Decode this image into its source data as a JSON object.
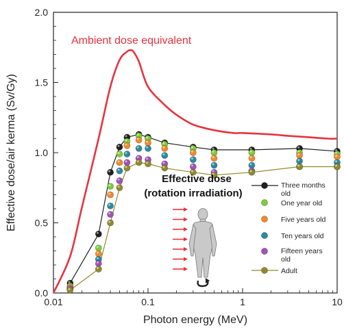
{
  "chart_data": {
    "type": "line",
    "xscale": "log",
    "xlim": [
      0.01,
      10
    ],
    "ylim": [
      0.0,
      2.0
    ],
    "xlabel": "Photon energy (MeV)",
    "ylabel": "Effective dose/air kerma (Sv/Gy)",
    "x_ticks": [
      {
        "v": 0.01,
        "label": "0.01"
      },
      {
        "v": 0.1,
        "label": "0.1"
      },
      {
        "v": 1,
        "label": "1"
      },
      {
        "v": 10,
        "label": "10"
      }
    ],
    "y_ticks": [
      {
        "v": 0.0,
        "label": "0.0"
      },
      {
        "v": 0.5,
        "label": "0.5"
      },
      {
        "v": 1.0,
        "label": "1.0"
      },
      {
        "v": 1.5,
        "label": "1.5"
      },
      {
        "v": 2.0,
        "label": "2.0"
      }
    ],
    "annotations": {
      "ambient": "Ambient dose equivalent",
      "effective_line1": "Effective dose",
      "effective_line2": "(rotation irradiation)"
    },
    "ambient_series": {
      "color": "#e8323c",
      "x": [
        0.01,
        0.015,
        0.02,
        0.03,
        0.04,
        0.05,
        0.06,
        0.065,
        0.07,
        0.08,
        0.1,
        0.15,
        0.2,
        0.3,
        0.5,
        0.8,
        1,
        2,
        3,
        5,
        8,
        10
      ],
      "y": [
        0.0,
        0.26,
        0.61,
        1.1,
        1.47,
        1.66,
        1.72,
        1.73,
        1.72,
        1.65,
        1.47,
        1.34,
        1.27,
        1.2,
        1.16,
        1.14,
        1.14,
        1.13,
        1.12,
        1.11,
        1.1,
        1.1
      ]
    },
    "x": [
      0.015,
      0.03,
      0.04,
      0.05,
      0.06,
      0.08,
      0.1,
      0.15,
      0.3,
      0.5,
      1.25,
      4,
      10
    ],
    "series": [
      {
        "name": "Three months old",
        "color": "#1f1f1f",
        "line": true,
        "values": [
          0.07,
          0.42,
          0.86,
          1.04,
          1.11,
          1.13,
          1.11,
          1.07,
          1.04,
          1.02,
          1.02,
          1.03,
          1.01
        ]
      },
      {
        "name": "One year old",
        "color": "#7ccc3a",
        "line": false,
        "values": [
          0.05,
          0.32,
          0.76,
          0.99,
          1.08,
          1.12,
          1.1,
          1.06,
          1.03,
          1.0,
          1.0,
          1.0,
          0.99
        ]
      },
      {
        "name": "Five years old",
        "color": "#f08a2c",
        "line": false,
        "values": [
          0.04,
          0.28,
          0.7,
          0.93,
          1.05,
          1.09,
          1.07,
          1.03,
          1.0,
          0.96,
          0.96,
          0.98,
          0.97
        ]
      },
      {
        "name": "Ten years old",
        "color": "#2b8a9e",
        "line": false,
        "values": [
          0.03,
          0.24,
          0.62,
          0.87,
          0.99,
          1.03,
          1.03,
          0.98,
          0.95,
          0.91,
          0.91,
          0.94,
          0.93
        ]
      },
      {
        "name": "Fifteen years old",
        "color": "#a350b9",
        "line": false,
        "values": [
          0.03,
          0.21,
          0.56,
          0.8,
          0.93,
          0.96,
          0.95,
          0.92,
          0.9,
          0.86,
          0.87,
          0.9,
          0.9
        ]
      },
      {
        "name": "Adult",
        "color": "#8f8a2e",
        "line": true,
        "values": [
          0.02,
          0.17,
          0.5,
          0.75,
          0.89,
          0.93,
          0.92,
          0.89,
          0.86,
          0.84,
          0.86,
          0.9,
          0.9
        ]
      }
    ]
  }
}
